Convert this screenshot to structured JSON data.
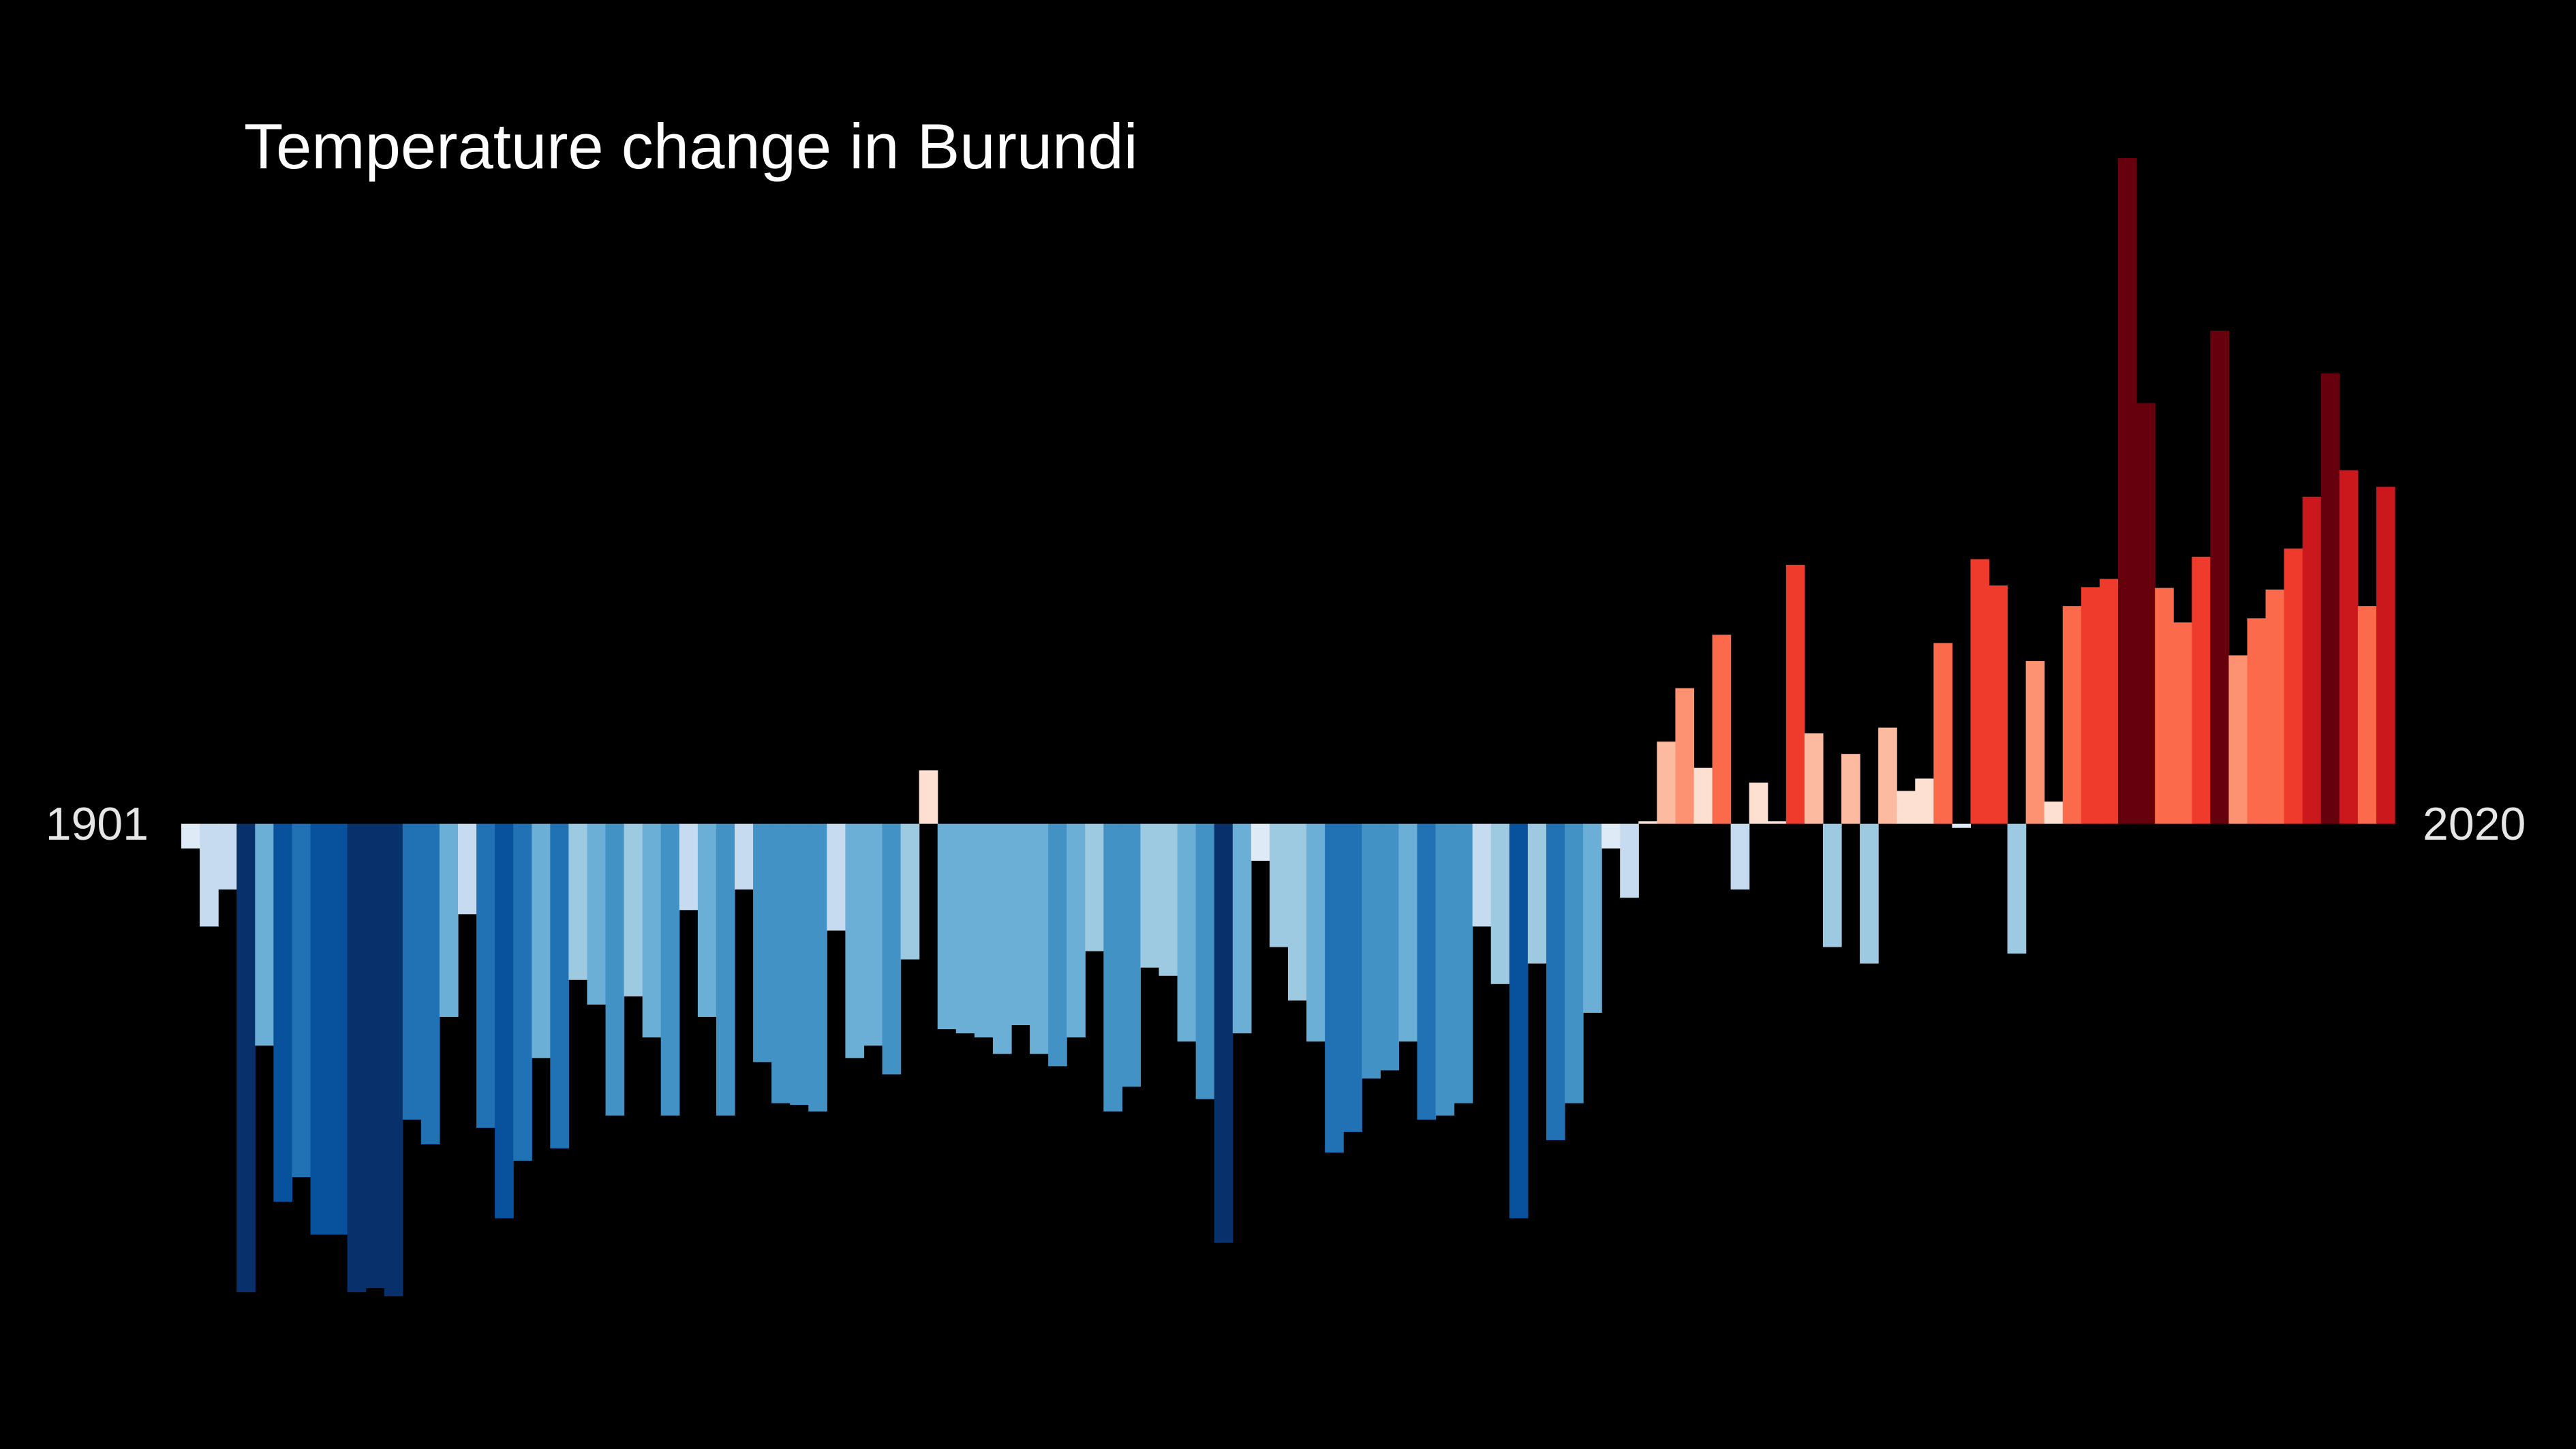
{
  "chart_data": {
    "type": "bar",
    "title": "Temperature change in Burundi",
    "xlabel": "",
    "ylabel": "",
    "x_start": 1901,
    "x_end": 2020,
    "start_label": "1901",
    "end_label": "2020",
    "ylim": [
      -0.575,
      0.81
    ],
    "grid": false,
    "legend": "none",
    "background": "#000000",
    "color_scale": [
      "#08306b",
      "#08519c",
      "#2171b5",
      "#4292c6",
      "#6baed6",
      "#9ecae1",
      "#c6dbef",
      "#deebf7",
      "#fee0d2",
      "#fcbba1",
      "#fc9272",
      "#fb6a4a",
      "#ef3b2c",
      "#cb181d",
      "#a50f15",
      "#67000d"
    ],
    "values": [
      -0.03,
      -0.125,
      -0.08,
      -0.57,
      -0.27,
      -0.46,
      -0.43,
      -0.5,
      -0.5,
      -0.57,
      -0.565,
      -0.575,
      -0.36,
      -0.39,
      -0.235,
      -0.11,
      -0.37,
      -0.48,
      -0.41,
      -0.285,
      -0.395,
      -0.19,
      -0.22,
      -0.355,
      -0.21,
      -0.26,
      -0.355,
      -0.105,
      -0.235,
      -0.355,
      -0.08,
      -0.29,
      -0.34,
      -0.342,
      -0.35,
      -0.13,
      -0.285,
      -0.27,
      -0.305,
      -0.165,
      0.065,
      -0.25,
      -0.255,
      -0.26,
      -0.28,
      -0.245,
      -0.28,
      -0.295,
      -0.26,
      -0.155,
      -0.35,
      -0.32,
      -0.175,
      -0.185,
      -0.265,
      -0.335,
      -0.51,
      -0.255,
      -0.045,
      -0.15,
      -0.215,
      -0.265,
      -0.4,
      -0.375,
      -0.31,
      -0.3,
      -0.265,
      -0.36,
      -0.355,
      -0.34,
      -0.125,
      -0.195,
      -0.48,
      -0.17,
      -0.385,
      -0.34,
      -0.23,
      -0.03,
      -0.09,
      0.003,
      0.1,
      0.165,
      0.068,
      0.23,
      -0.08,
      0.05,
      0.003,
      0.315,
      0.11,
      -0.15,
      0.085,
      -0.17,
      0.117,
      0.04,
      0.055,
      0.22,
      -0.005,
      0.322,
      0.29,
      -0.158,
      0.198,
      0.027,
      0.265,
      0.288,
      0.298,
      0.81,
      0.512,
      0.287,
      0.245,
      0.325,
      0.6,
      0.205,
      0.25,
      0.285,
      0.335,
      0.398,
      0.548,
      0.43,
      0.265,
      0.41
    ]
  }
}
